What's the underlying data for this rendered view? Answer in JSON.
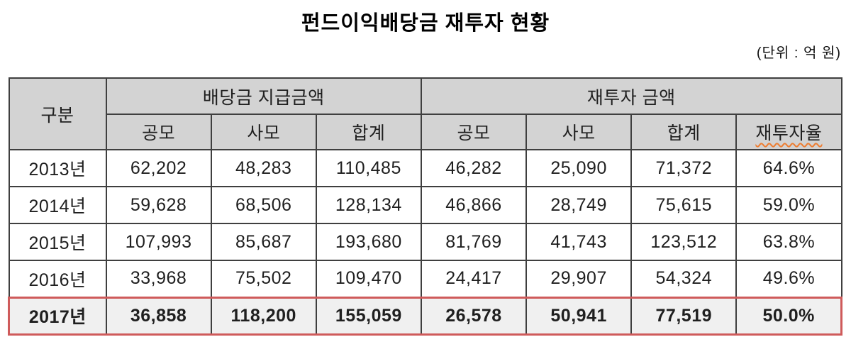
{
  "title": "펀드이익배당금 재투자 현황",
  "unit_note": "(단위 : 억 원)",
  "colors": {
    "header_bg": "#d3d3d3",
    "table_border": "#3f3f3f",
    "highlight_border": "#cf5b5b",
    "highlight_bg": "#f0f0f0",
    "spellcheck_underline": "#ED7D31"
  },
  "table": {
    "corner_label": "구분",
    "groups": [
      {
        "label": "배당금 지급금액"
      },
      {
        "label": "재투자 금액"
      }
    ],
    "subheaders": [
      "공모",
      "사모",
      "합계",
      "공모",
      "사모",
      "합계",
      "재투자율"
    ],
    "rows": [
      {
        "year": "2013년",
        "cells": [
          "62,202",
          "48,283",
          "110,485",
          "46,282",
          "25,090",
          "71,372",
          "64.6%"
        ]
      },
      {
        "year": "2014년",
        "cells": [
          "59,628",
          "68,506",
          "128,134",
          "46,866",
          "28,749",
          "75,615",
          "59.0%"
        ]
      },
      {
        "year": "2015년",
        "cells": [
          "107,993",
          "85,687",
          "193,680",
          "81,769",
          "41,743",
          "123,512",
          "63.8%"
        ]
      },
      {
        "year": "2016년",
        "cells": [
          "33,968",
          "75,502",
          "109,470",
          "24,417",
          "29,907",
          "54,324",
          "49.6%"
        ]
      },
      {
        "year": "2017년",
        "cells": [
          "36,858",
          "118,200",
          "155,059",
          "26,578",
          "50,941",
          "77,519",
          "50.0%"
        ]
      }
    ]
  }
}
